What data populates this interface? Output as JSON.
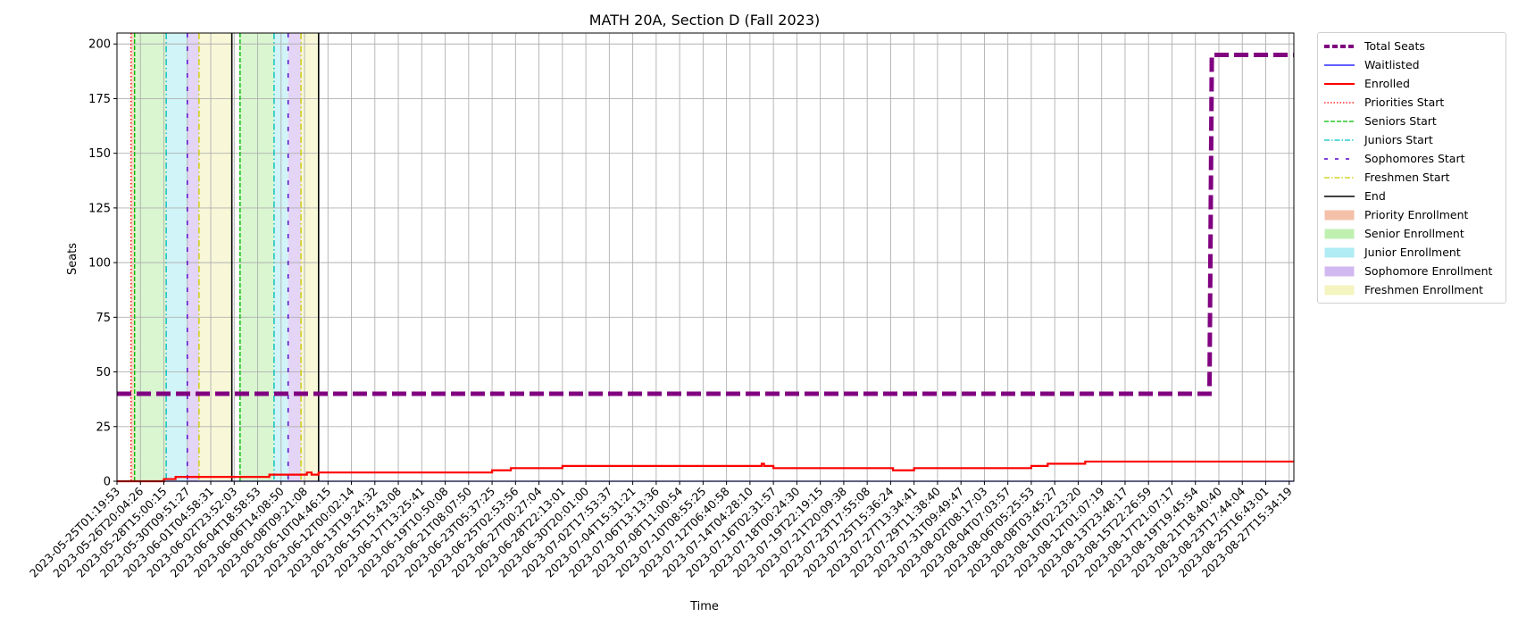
{
  "chart_data": {
    "type": "line",
    "title": "MATH 20A, Section D (Fall 2023)",
    "xlabel": "Time",
    "ylabel": "Seats",
    "ylim": [
      0,
      205
    ],
    "yticks": [
      0,
      25,
      50,
      75,
      100,
      125,
      150,
      175,
      200
    ],
    "grid": true,
    "legend_position": "outside-right",
    "x_tick_labels": [
      "2023-05-25T01:19:53",
      "2023-05-26T20:04:26",
      "2023-05-28T15:00:15",
      "2023-05-30T09:51:27",
      "2023-06-01T04:58:31",
      "2023-06-02T23:52:03",
      "2023-06-04T18:58:53",
      "2023-06-06T14:08:50",
      "2023-06-08T09:21:08",
      "2023-06-10T04:46:15",
      "2023-06-12T00:02:14",
      "2023-06-13T19:24:32",
      "2023-06-15T15:43:08",
      "2023-06-17T13:25:41",
      "2023-06-19T10:50:08",
      "2023-06-21T08:07:50",
      "2023-06-23T05:37:25",
      "2023-06-25T02:53:56",
      "2023-06-27T00:27:04",
      "2023-06-28T22:13:01",
      "2023-06-30T20:01:00",
      "2023-07-02T17:53:37",
      "2023-07-04T15:31:21",
      "2023-07-06T13:13:36",
      "2023-07-08T11:00:54",
      "2023-07-10T08:55:25",
      "2023-07-12T06:40:58",
      "2023-07-14T04:28:10",
      "2023-07-16T02:31:57",
      "2023-07-18T00:24:30",
      "2023-07-19T22:19:15",
      "2023-07-21T20:09:38",
      "2023-07-23T17:55:08",
      "2023-07-25T15:36:24",
      "2023-07-27T13:34:41",
      "2023-07-29T11:38:40",
      "2023-07-31T09:49:47",
      "2023-08-02T08:17:03",
      "2023-08-04T07:03:57",
      "2023-08-06T05:25:53",
      "2023-08-08T03:45:27",
      "2023-08-10T02:23:20",
      "2023-08-12T01:07:19",
      "2023-08-13T23:48:17",
      "2023-08-15T22:26:59",
      "2023-08-17T21:07:17",
      "2023-08-19T19:45:54",
      "2023-08-21T18:40:40",
      "2023-08-23T17:44:04",
      "2023-08-25T16:43:01",
      "2023-08-27T15:34:19"
    ],
    "x_range": [
      0,
      50.2
    ],
    "series": [
      {
        "name": "Total Seats",
        "color": "#800080",
        "style": "dashed-thick",
        "points": [
          [
            0,
            40
          ],
          [
            46.6,
            40
          ],
          [
            46.7,
            195
          ],
          [
            50.2,
            195
          ]
        ]
      },
      {
        "name": "Waitlisted",
        "color": "#0000ff",
        "style": "solid-thin",
        "points": [
          [
            0,
            0
          ],
          [
            50.2,
            0
          ]
        ]
      },
      {
        "name": "Enrolled",
        "color": "#ff0000",
        "style": "solid",
        "points": [
          [
            0,
            0
          ],
          [
            2.0,
            0
          ],
          [
            2.0,
            1
          ],
          [
            2.5,
            1
          ],
          [
            2.5,
            2
          ],
          [
            6.5,
            2
          ],
          [
            6.5,
            3
          ],
          [
            8.1,
            3
          ],
          [
            8.1,
            4
          ],
          [
            8.3,
            4
          ],
          [
            8.3,
            3
          ],
          [
            8.6,
            3
          ],
          [
            8.6,
            4
          ],
          [
            16.0,
            4
          ],
          [
            16.0,
            5
          ],
          [
            16.8,
            5
          ],
          [
            16.8,
            6
          ],
          [
            19.0,
            6
          ],
          [
            19.0,
            7
          ],
          [
            27.5,
            7
          ],
          [
            27.5,
            8
          ],
          [
            27.6,
            8
          ],
          [
            27.6,
            7
          ],
          [
            28.0,
            7
          ],
          [
            28.0,
            6
          ],
          [
            33.1,
            6
          ],
          [
            33.1,
            5
          ],
          [
            34.0,
            5
          ],
          [
            34.0,
            6
          ],
          [
            39.0,
            6
          ],
          [
            39.0,
            7
          ],
          [
            39.7,
            7
          ],
          [
            39.7,
            8
          ],
          [
            41.3,
            8
          ],
          [
            41.3,
            9
          ],
          [
            50.2,
            9
          ]
        ]
      }
    ],
    "markers": [
      {
        "name": "Priorities Start",
        "color": "#ff0000",
        "style": "dotted",
        "x": [
          0.6
        ]
      },
      {
        "name": "Seniors Start",
        "color": "#00bb00",
        "style": "dashed",
        "x": [
          0.75,
          5.25
        ]
      },
      {
        "name": "Juniors Start",
        "color": "#00bfbf",
        "style": "dashdot",
        "x": [
          2.1,
          6.7
        ]
      },
      {
        "name": "Sophomores Start",
        "color": "#5500cc",
        "style": "loosedash",
        "x": [
          3.0,
          7.3
        ]
      },
      {
        "name": "Freshmen Start",
        "color": "#cccc00",
        "style": "dashdot",
        "x": [
          3.5,
          7.85
        ]
      },
      {
        "name": "End",
        "color": "#000000",
        "style": "solid",
        "x": [
          4.9,
          8.6
        ]
      }
    ],
    "spans": [
      {
        "name": "Priority Enrollment",
        "color": "#f4c1a8",
        "ranges": [
          [
            0.6,
            0.75
          ]
        ]
      },
      {
        "name": "Senior Enrollment",
        "color": "#bff0b0",
        "ranges": [
          [
            0.75,
            2.1
          ],
          [
            5.25,
            6.7
          ]
        ]
      },
      {
        "name": "Junior Enrollment",
        "color": "#b0ecf4",
        "ranges": [
          [
            2.1,
            3.0
          ],
          [
            6.7,
            7.3
          ]
        ]
      },
      {
        "name": "Sophomore Enrollment",
        "color": "#d2b8f0",
        "ranges": [
          [
            3.0,
            3.5
          ],
          [
            7.3,
            7.85
          ]
        ]
      },
      {
        "name": "Freshmen Enrollment",
        "color": "#f4f4c0",
        "ranges": [
          [
            3.5,
            4.9
          ],
          [
            7.85,
            8.6
          ]
        ]
      }
    ]
  },
  "legend": [
    {
      "label": "Total Seats",
      "kind": "line",
      "color": "#800080",
      "dash": "6,3",
      "width": 4
    },
    {
      "label": "Waitlisted",
      "kind": "line",
      "color": "#0000ff",
      "dash": "",
      "width": 1.2
    },
    {
      "label": "Enrolled",
      "kind": "line",
      "color": "#ff0000",
      "dash": "",
      "width": 2
    },
    {
      "label": "Priorities Start",
      "kind": "line",
      "color": "#ff0000",
      "dash": "1.5,2",
      "width": 1.2
    },
    {
      "label": "Seniors Start",
      "kind": "line",
      "color": "#00bb00",
      "dash": "5,2",
      "width": 1.2
    },
    {
      "label": "Juniors Start",
      "kind": "line",
      "color": "#00bfbf",
      "dash": "6,2,1.5,2",
      "width": 1.2
    },
    {
      "label": "Sophomores Start",
      "kind": "line",
      "color": "#5500cc",
      "dash": "4,8",
      "width": 1.4
    },
    {
      "label": "Freshmen Start",
      "kind": "line",
      "color": "#cccc00",
      "dash": "6,2,1.5,2",
      "width": 1.2
    },
    {
      "label": "End",
      "kind": "line",
      "color": "#000000",
      "dash": "",
      "width": 1.5
    },
    {
      "label": "Priority Enrollment",
      "kind": "patch",
      "color": "#f4c1a8"
    },
    {
      "label": "Senior Enrollment",
      "kind": "patch",
      "color": "#bff0b0"
    },
    {
      "label": "Junior Enrollment",
      "kind": "patch",
      "color": "#b0ecf4"
    },
    {
      "label": "Sophomore Enrollment",
      "kind": "patch",
      "color": "#d2b8f0"
    },
    {
      "label": "Freshmen Enrollment",
      "kind": "patch",
      "color": "#f4f4c0"
    }
  ]
}
